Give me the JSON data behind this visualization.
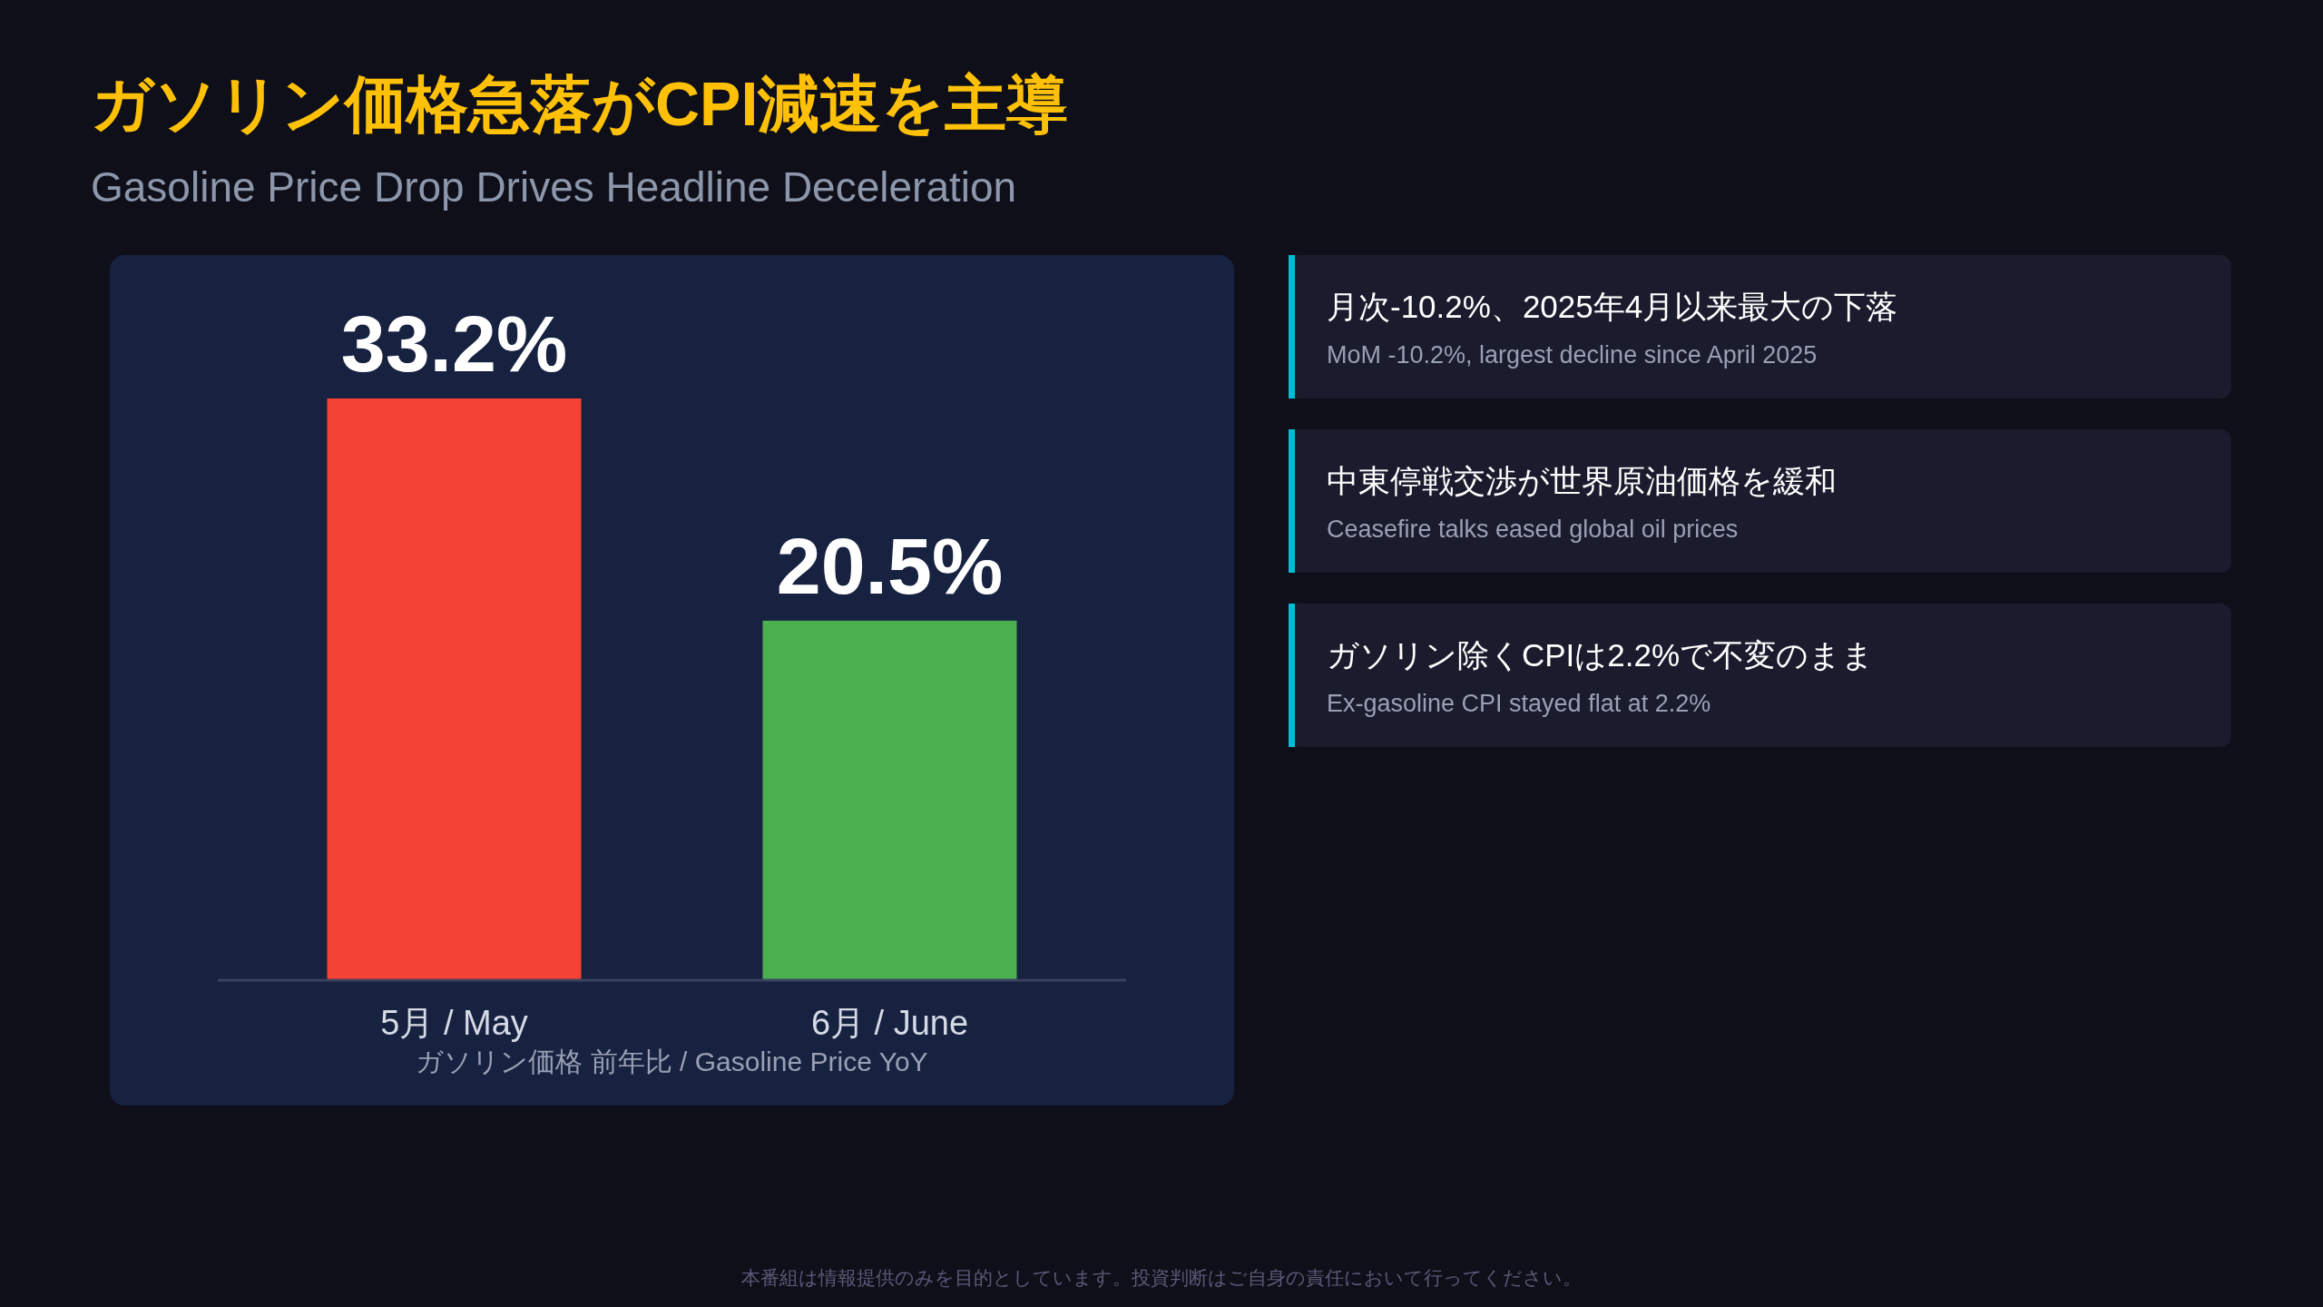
{
  "chart_data": [
    {
      "type": "bar",
      "title": "ガソリン価格急落がCPI減速を主導",
      "subtitle": "Gasoline Price Drop Drives Headline Deceleration",
      "xlabel": "ガソリン価格 前年比 / Gasoline Price YoY",
      "categories": [
        "5月 / May",
        "6月 / June"
      ],
      "values": [
        33.2,
        20.5
      ],
      "colors": [
        "#f44336",
        "#4caf50"
      ],
      "value_labels": [
        "33.2%",
        "20.5%"
      ],
      "annotations": [
        "本番組は情報提供のみを目的としています。投資判断はご自身の責任において行ってください。"
      ]
    },
    {
      "type": "other",
      "annotations": [
        "月次-10.2%、2025年4月以来最大の下落",
        "MoM -10.2%, largest decline since April 2025",
        "中東停戦交渉が世界原油価格を緩和",
        "Ceasefire talks eased global oil prices",
        "ガソリン除くCPIは2.2%で不変のまま",
        "Ex-gasoline CPI stayed flat at 2.2%"
      ]
    }
  ]
}
